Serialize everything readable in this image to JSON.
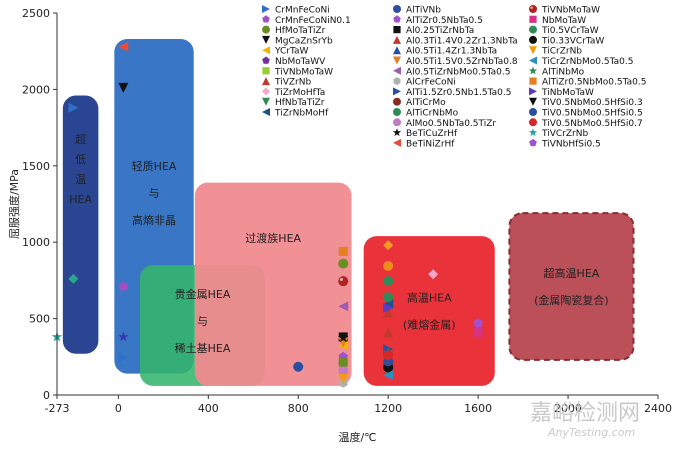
{
  "chart_data": {
    "type": "scatter",
    "xlabel": "温度/℃",
    "ylabel": "屈服强度/MPa",
    "xlim": [
      -273,
      2400
    ],
    "ylim": [
      0,
      2500
    ],
    "xticks": [
      -273,
      0,
      400,
      800,
      1200,
      1600,
      2000,
      2400
    ],
    "yticks": [
      0,
      500,
      1000,
      1500,
      2000,
      2500
    ],
    "regions": [
      {
        "name": "ultra-low-temp",
        "lines": [
          "超",
          "低",
          "温",
          "HEA"
        ],
        "x": [
          -247,
          -89
        ],
        "y": [
          270,
          1960
        ],
        "color": "#1f3b8c"
      },
      {
        "name": "light-hea",
        "lines": [
          "轻质HEA",
          "与",
          "高熵非晶"
        ],
        "x": [
          -18,
          335
        ],
        "y": [
          140,
          2330
        ],
        "color": "#2e6fc2"
      },
      {
        "name": "noble-rare-earth",
        "lines": [
          "贵金属HEA",
          "与",
          "稀土基HEA"
        ],
        "x": [
          96,
          652
        ],
        "y": [
          60,
          850
        ],
        "color": "#34b56b"
      },
      {
        "name": "transition-hea",
        "lines": [
          "过渡族HEA"
        ],
        "x": [
          340,
          1037
        ],
        "y": [
          60,
          1390
        ],
        "color": "#f08a8f"
      },
      {
        "name": "high-temp",
        "lines": [
          "高温HEA",
          "(难熔金属)"
        ],
        "x": [
          1091,
          1674
        ],
        "y": [
          60,
          1040
        ],
        "color": "#e8272f"
      },
      {
        "name": "ultra-high-temp",
        "lines": [
          "超高温HEA",
          "(金属陶瓷复合)"
        ],
        "x": [
          1739,
          2291
        ],
        "y": [
          230,
          1190
        ],
        "color": "#b8474f",
        "dashed": true
      }
    ],
    "series": [
      {
        "name": "CrMnFeCoNi",
        "marker": "tri-right",
        "color": "#2f6fc8",
        "points": [
          [
            -200,
            1880
          ],
          [
            22,
            245
          ]
        ]
      },
      {
        "name": "CrMnFeCoNiN0.1",
        "marker": "pentagon",
        "color": "#a14fc2",
        "points": [
          [
            22,
            710
          ]
        ]
      },
      {
        "name": "HfMoTaTiZr",
        "marker": "circle",
        "color": "#6b8e23",
        "points": [
          [
            1000,
            860
          ]
        ]
      },
      {
        "name": "MgCaZnSrYb",
        "marker": "tri-down",
        "color": "#111111",
        "points": [
          [
            22,
            2010
          ]
        ]
      },
      {
        "name": "YCrTaW",
        "marker": "tri-left",
        "color": "#f5b300",
        "points": [
          [
            1000,
            325
          ]
        ]
      },
      {
        "name": "NbMoTaWV",
        "marker": "pentagon",
        "color": "#7030a0",
        "points": [
          [
            1000,
            200
          ]
        ]
      },
      {
        "name": "TiVNbMoTaW",
        "marker": "square",
        "color": "#9acd32",
        "points": [
          [
            1000,
            160
          ]
        ]
      },
      {
        "name": "TiVZrNb",
        "marker": "tri-up",
        "color": "#c0392b",
        "points": [
          [
            1200,
            410
          ]
        ]
      },
      {
        "name": "TiZrMoHfTa",
        "marker": "diamond",
        "color": "#f4a7c8",
        "points": [
          [
            1400,
            790
          ]
        ]
      },
      {
        "name": "HfNbTaTiZr",
        "marker": "tri-down",
        "color": "#2e8b57",
        "points": [
          [
            1200,
            155
          ]
        ]
      },
      {
        "name": "TiZrNbMoHf",
        "marker": "tri-left",
        "color": "#1e4d8c",
        "points": [
          [
            1200,
            595
          ]
        ]
      },
      {
        "name": "AlTiVNb",
        "marker": "circle",
        "color": "#2b4ea0",
        "points": [
          [
            800,
            185
          ]
        ]
      },
      {
        "name": "AlTiZr0.5NbTa0.5",
        "marker": "pentagon",
        "color": "#a050d0",
        "points": [
          [
            1000,
            250
          ]
        ]
      },
      {
        "name": "Al0.25TiZrNbTa",
        "marker": "square",
        "color": "#111111",
        "points": [
          [
            1000,
            380
          ]
        ]
      },
      {
        "name": "Al0.3Ti1.4V0.2Zr1.3NbTa",
        "marker": "tri-up",
        "color": "#c0392b",
        "points": [
          [
            1200,
            540
          ]
        ]
      },
      {
        "name": "Al0.5Ti1.4Zr1.3NbTa",
        "marker": "tri-up",
        "color": "#2b4ea0",
        "points": [
          [
            1200,
            200
          ]
        ]
      },
      {
        "name": "Al0.5Ti1.5V0.5ZrNbTa0.8",
        "marker": "tri-down",
        "color": "#e67e22",
        "points": [
          [
            1000,
            345
          ]
        ]
      },
      {
        "name": "Al0.5TiZrNbMo0.5Ta0.5",
        "marker": "tri-left",
        "color": "#a05ab0",
        "points": [
          [
            1000,
            580
          ]
        ]
      },
      {
        "name": "AlCrFeCoNi",
        "marker": "hexagon",
        "color": "#b0b0b0",
        "points": [
          [
            1000,
            80
          ]
        ]
      },
      {
        "name": "AlTi1.5Zr0.5Nb1.5Ta0.5",
        "marker": "tri-right",
        "color": "#2b4ea0",
        "points": [
          [
            1200,
            300
          ]
        ]
      },
      {
        "name": "AlTiCrMo",
        "marker": "circle",
        "color": "#8b2a1e",
        "points": [
          [
            1200,
            195
          ]
        ]
      },
      {
        "name": "AlTiCrNbMo",
        "marker": "circle",
        "color": "#2e8b57",
        "points": [
          [
            1200,
            745
          ]
        ]
      },
      {
        "name": "AlMo0.5NbTa0.5TiZr",
        "marker": "circle",
        "color": "#c27bc2",
        "points": [
          [
            1000,
            160
          ]
        ]
      },
      {
        "name": "BeTiCuZrHf",
        "marker": "star",
        "color": "#111111",
        "points": [
          [
            1000,
            375
          ]
        ]
      },
      {
        "name": "BeTiNiZrHf",
        "marker": "tri-left",
        "color": "#e74c3c",
        "points": [
          [
            22,
            2280
          ]
        ]
      },
      {
        "name": "TiVNbMoTaW",
        "marker": "circle3d",
        "color": "#b0231e",
        "points": [
          [
            1000,
            745
          ]
        ]
      },
      {
        "name": "NbMoTaW",
        "marker": "square",
        "color": "#d63384",
        "points": [
          [
            1600,
            410
          ]
        ]
      },
      {
        "name": "Ti0.5VCrTaW",
        "marker": "circle",
        "color": "#2e8b57",
        "points": [
          [
            1200,
            640
          ]
        ]
      },
      {
        "name": "Ti0.33VCrTaW",
        "marker": "circle",
        "color": "#111111",
        "points": [
          [
            1200,
            180
          ]
        ]
      },
      {
        "name": "TiCrZrNb",
        "marker": "tri-down",
        "color": "#f39c12",
        "points": [
          [
            1000,
            105
          ]
        ]
      },
      {
        "name": "TiCrZrNbMo0.5Ta0.5",
        "marker": "tri-left",
        "color": "#2b8fbf",
        "points": [
          [
            1200,
            130
          ]
        ]
      },
      {
        "name": "AlTiNbMo",
        "marker": "star",
        "color": "#2e8b57",
        "points": [
          [
            1200,
            275
          ]
        ]
      },
      {
        "name": "AlTiZr0.5NbMo0.5Ta0.5",
        "marker": "square",
        "color": "#e67e22",
        "points": [
          [
            1000,
            940
          ]
        ]
      },
      {
        "name": "TiNbMoTaW",
        "marker": "tri-right",
        "color": "#5b3bc4",
        "points": [
          [
            1200,
            570
          ]
        ]
      },
      {
        "name": "TiV0.5NbMo0.5HfSi0.3",
        "marker": "tri-down",
        "color": "#111111",
        "points": [
          [
            1200,
            235
          ]
        ]
      },
      {
        "name": "TiV0.5NbMo0.5HfSi0.5",
        "marker": "circle",
        "color": "#2b4ea0",
        "points": [
          [
            1200,
            220
          ]
        ]
      },
      {
        "name": "TiV0.5NbMo0.5HfSi0.7",
        "marker": "circle",
        "color": "#d62728",
        "points": [
          [
            1200,
            260
          ]
        ]
      },
      {
        "name": "TiVCrZrNb",
        "marker": "star",
        "color": "#2aa0a0",
        "points": [
          [
            -273,
            380
          ]
        ]
      },
      {
        "name": "TiVNbHfSi0.5",
        "marker": "pentagon",
        "color": "#a050d0",
        "points": [
          [
            1600,
            470
          ]
        ]
      }
    ],
    "extra_points": [
      {
        "marker": "diamond",
        "color": "#2aa58a",
        "x": -200,
        "y": 760
      },
      {
        "marker": "star",
        "color": "#3a3ab0",
        "x": 22,
        "y": 380
      },
      {
        "marker": "diamond",
        "color": "#f29b22",
        "x": 1200,
        "y": 980
      },
      {
        "marker": "circle",
        "color": "#f08a1e",
        "x": 1200,
        "y": 845
      },
      {
        "marker": "square",
        "color": "#6b8e23",
        "x": 1000,
        "y": 215
      }
    ],
    "legend": {
      "placement": "top-right",
      "columns": [
        [
          {
            "label": "CrMnFeCoNi",
            "marker": "tri-right",
            "color": "#2f6fc8"
          },
          {
            "label": "CrMnFeCoNiN0.1",
            "marker": "pentagon",
            "color": "#a14fc2"
          },
          {
            "label": "HfMoTaTiZr",
            "marker": "circle",
            "color": "#6b8e23"
          },
          {
            "label": "MgCaZnSrYb",
            "marker": "tri-down",
            "color": "#111111"
          },
          {
            "label": "YCrTaW",
            "marker": "tri-left",
            "color": "#f5b300"
          },
          {
            "label": "NbMoTaWV",
            "marker": "pentagon",
            "color": "#7030a0"
          },
          {
            "label": "TiVNbMoTaW",
            "marker": "square",
            "color": "#9acd32"
          },
          {
            "label": "TiVZrNb",
            "marker": "tri-up",
            "color": "#c0392b"
          },
          {
            "label": "TiZrMoHfTa",
            "marker": "diamond",
            "color": "#f4a7c8"
          },
          {
            "label": "HfNbTaTiZr",
            "marker": "tri-down",
            "color": "#2e8b57"
          },
          {
            "label": "TiZrNbMoHf",
            "marker": "tri-left",
            "color": "#1e4d8c"
          }
        ],
        [
          {
            "label": "AlTiVNb",
            "marker": "circle",
            "color": "#2b4ea0"
          },
          {
            "label": "AlTiZr0.5NbTa0.5",
            "marker": "pentagon",
            "color": "#a050d0"
          },
          {
            "label": "Al0.25TiZrNbTa",
            "marker": "square",
            "color": "#111111"
          },
          {
            "label": "Al0.3Ti1.4V0.2Zr1.3NbTa",
            "marker": "tri-up",
            "color": "#c0392b"
          },
          {
            "label": "Al0.5Ti1.4Zr1.3NbTa",
            "marker": "tri-up",
            "color": "#2b4ea0"
          },
          {
            "label": "Al0.5Ti1.5V0.5ZrNbTa0.8",
            "marker": "tri-down",
            "color": "#e67e22"
          },
          {
            "label": "Al0.5TiZrNbMo0.5Ta0.5",
            "marker": "tri-left",
            "color": "#a05ab0"
          },
          {
            "label": "AlCrFeCoNi",
            "marker": "hexagon",
            "color": "#b0b0b0"
          },
          {
            "label": "AlTi1.5Zr0.5Nb1.5Ta0.5",
            "marker": "tri-right",
            "color": "#2b4ea0"
          },
          {
            "label": "AlTiCrMo",
            "marker": "circle",
            "color": "#8b2a1e"
          },
          {
            "label": "AlTiCrNbMo",
            "marker": "circle",
            "color": "#2e8b57"
          },
          {
            "label": "AlMo0.5NbTa0.5TiZr",
            "marker": "circle",
            "color": "#c27bc2"
          },
          {
            "label": "BeTiCuZrHf",
            "marker": "star",
            "color": "#111111"
          },
          {
            "label": "BeTiNiZrHf",
            "marker": "tri-left",
            "color": "#e74c3c"
          }
        ],
        [
          {
            "label": "TiVNbMoTaW",
            "marker": "circle3d",
            "color": "#b0231e"
          },
          {
            "label": "NbMoTaW",
            "marker": "square",
            "color": "#d63384"
          },
          {
            "label": "Ti0.5VCrTaW",
            "marker": "circle",
            "color": "#2e8b57"
          },
          {
            "label": "Ti0.33VCrTaW",
            "marker": "circle",
            "color": "#111111"
          },
          {
            "label": "TiCrZrNb",
            "marker": "tri-down",
            "color": "#f39c12"
          },
          {
            "label": "TiCrZrNbMo0.5Ta0.5",
            "marker": "tri-left",
            "color": "#2b8fbf"
          },
          {
            "label": "AlTiNbMo",
            "marker": "star",
            "color": "#2e8b57"
          },
          {
            "label": "AlTiZr0.5NbMo0.5Ta0.5",
            "marker": "square",
            "color": "#e67e22"
          },
          {
            "label": "TiNbMoTaW",
            "marker": "tri-right",
            "color": "#5b3bc4"
          },
          {
            "label": "TiV0.5NbMo0.5HfSi0.3",
            "marker": "tri-down",
            "color": "#111111"
          },
          {
            "label": "TiV0.5NbMo0.5HfSi0.5",
            "marker": "circle",
            "color": "#2b4ea0"
          },
          {
            "label": "TiV0.5NbMo0.5HfSi0.7",
            "marker": "circle",
            "color": "#d62728"
          },
          {
            "label": "TiVCrZrNb",
            "marker": "star",
            "color": "#2aa0a0"
          },
          {
            "label": "TiVNbHfSi0.5",
            "marker": "pentagon",
            "color": "#a050d0"
          }
        ]
      ]
    },
    "watermark": {
      "cn": "嘉峪检测网",
      "en": "AnyTesting.com"
    }
  }
}
